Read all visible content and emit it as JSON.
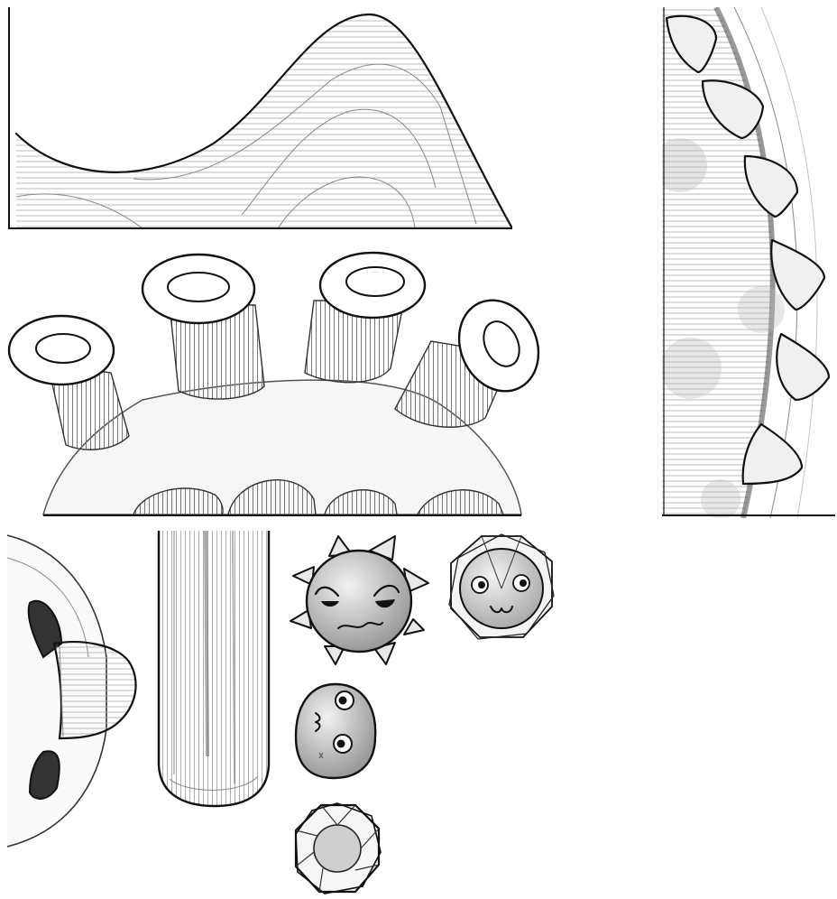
{
  "sheet": {
    "background": "#ffffff",
    "ink_color": "#111111",
    "shade_color": "#b0b0b0",
    "light_shade": "#dcdcdc",
    "style": "pencil sketch sprite sheet",
    "sprites": [
      {
        "name": "hill-terrain"
      },
      {
        "name": "chimney-ridge"
      },
      {
        "name": "spiked-wall"
      },
      {
        "name": "pipe-ring"
      },
      {
        "name": "vertical-tube"
      },
      {
        "name": "angry-spike-ball"
      },
      {
        "name": "faceted-face-gem"
      },
      {
        "name": "round-blob-face"
      },
      {
        "name": "faceted-gem"
      }
    ]
  }
}
